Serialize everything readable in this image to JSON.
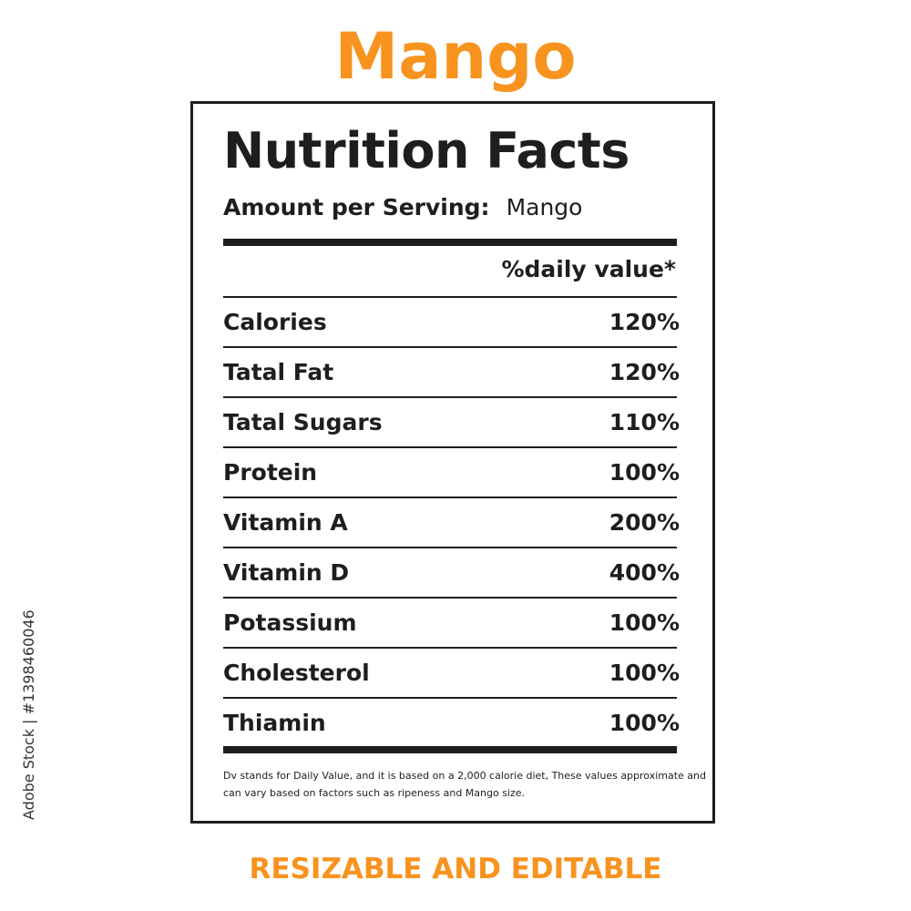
{
  "title": "Mango",
  "label": {
    "heading": "Nutrition Facts",
    "serving_label": "Amount per Serving:",
    "serving_value": "Mango",
    "dv_header": "%daily value*",
    "rows": [
      {
        "name": "Calories",
        "value": "120%"
      },
      {
        "name": "Tatal Fat",
        "value": "120%"
      },
      {
        "name": "Tatal Sugars",
        "value": "110%"
      },
      {
        "name": "Protein",
        "value": "100%"
      },
      {
        "name": "Vitamin A",
        "value": "200%"
      },
      {
        "name": "Vitamin D",
        "value": "400%"
      },
      {
        "name": "Potassium",
        "value": "100%"
      },
      {
        "name": "Cholesterol",
        "value": "100%"
      },
      {
        "name": "Thiamin",
        "value": "100%"
      }
    ],
    "footnote": "Dv stands for Daily Value, and it is based on a 2,000 calorie diet, These values approximate and can vary based on factors such as ripeness and Mango size."
  },
  "tagline": "RESIZABLE AND EDITABLE",
  "stock_id": "Adobe Stock | #1398460046",
  "colors": {
    "accent": "#f7931e",
    "text": "#1e1e1e"
  }
}
